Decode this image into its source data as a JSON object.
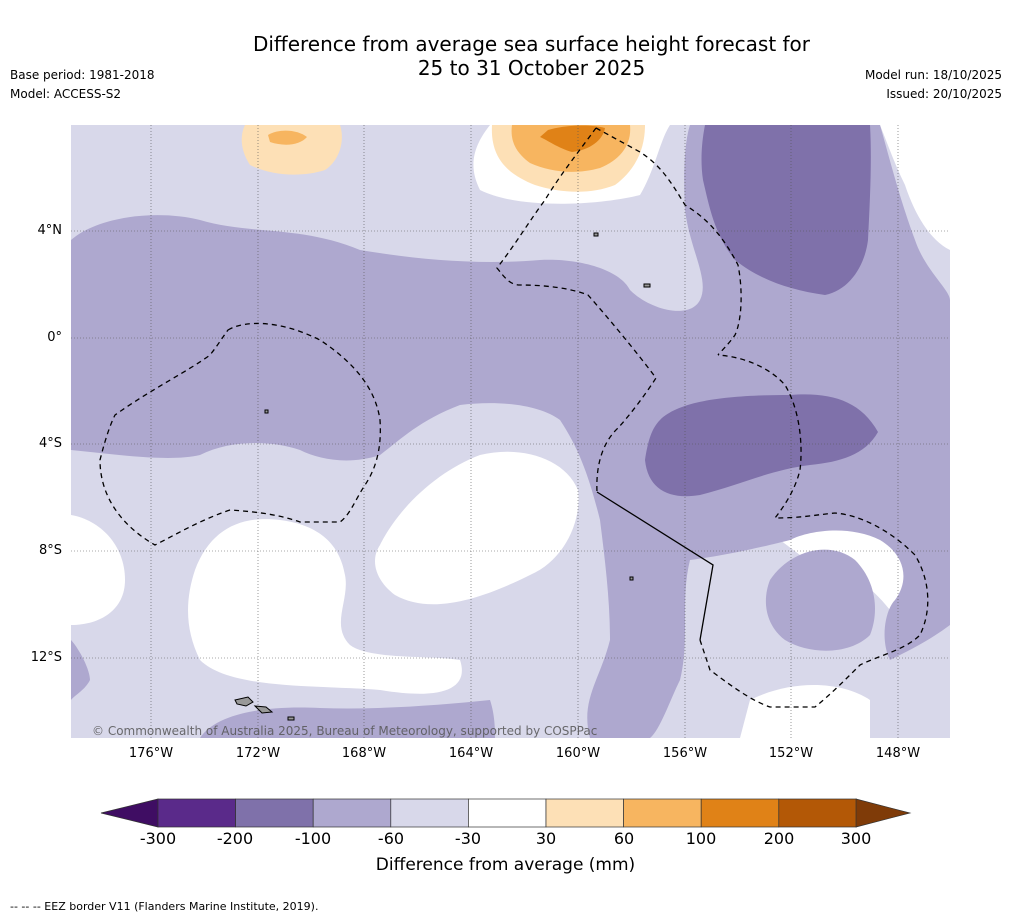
{
  "title_line1": "Difference from average sea surface height forecast for",
  "title_line2": "25 to 31 October 2025",
  "meta_left": {
    "base_period": "Base period: 1981-2018",
    "model": "Model: ACCESS-S2"
  },
  "meta_right": {
    "model_run": "Model run: 18/10/2025",
    "issued": "Issued: 20/10/2025"
  },
  "latitude_labels": [
    "4°N",
    "0°",
    "4°S",
    "8°S",
    "12°S"
  ],
  "longitude_labels": [
    "176°W",
    "172°W",
    "168°W",
    "164°W",
    "160°W",
    "156°W",
    "152°W",
    "148°W"
  ],
  "copyright": "© Commonwealth of Australia 2025, Bureau of Meteorology, supported by COSPPac",
  "colorbar": {
    "title": "Difference from average (mm)",
    "tick_labels": [
      "-300",
      "-200",
      "-100",
      "-60",
      "-30",
      "30",
      "60",
      "100",
      "200",
      "300"
    ],
    "colors": [
      "#3f0d63",
      "#5a2a8a",
      "#7f71aa",
      "#aea8cf",
      "#d8d8ea",
      "#ffffff",
      "#fde0b6",
      "#f7b560",
      "#e08217",
      "#b35806",
      "#7f3b08"
    ]
  },
  "eez_note": "--  --  -- EEZ border V11 (Flanders Marine Institute, 2019)."
}
